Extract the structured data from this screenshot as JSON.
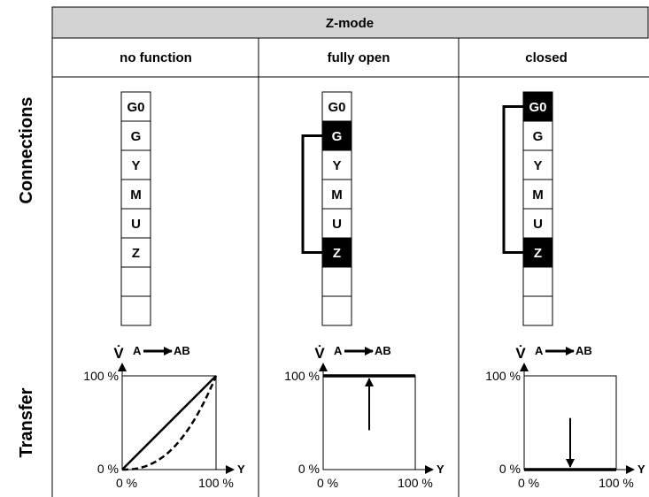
{
  "title": "Z-mode",
  "columns": [
    {
      "label": "no function",
      "connected_terminals": [],
      "transfer": {
        "ytick_top": "100 %",
        "ytick_bottom": "0 %",
        "xtick_left": "0 %",
        "xtick_right": "100 %",
        "curves": [
          "linear",
          "equal-percentage"
        ]
      }
    },
    {
      "label": "fully open",
      "connected_terminals": [
        "G",
        "Z"
      ],
      "transfer": {
        "ytick_top": "100 %",
        "ytick_bottom": "0 %",
        "xtick_left": "0 %",
        "xtick_right": "100 %",
        "output_level_percent": 100,
        "arrow": "up"
      }
    },
    {
      "label": "closed",
      "connected_terminals": [
        "G0",
        "Z"
      ],
      "transfer": {
        "ytick_top": "100 %",
        "ytick_bottom": "0 %",
        "xtick_left": "0 %",
        "xtick_right": "100 %",
        "output_level_percent": 0,
        "arrow": "down"
      }
    }
  ],
  "rows": {
    "connections": "Connections",
    "transfer": "Transfer"
  },
  "terminals": [
    "G0",
    "G",
    "Y",
    "M",
    "U",
    "Z",
    "",
    ""
  ],
  "graph": {
    "y_label": "V̇",
    "flow_from": "A",
    "flow_to": "AB",
    "x_label": "Y"
  },
  "colors": {
    "header_bg": "#d3d3d3",
    "active_terminal": "#000000",
    "line": "#000000"
  }
}
